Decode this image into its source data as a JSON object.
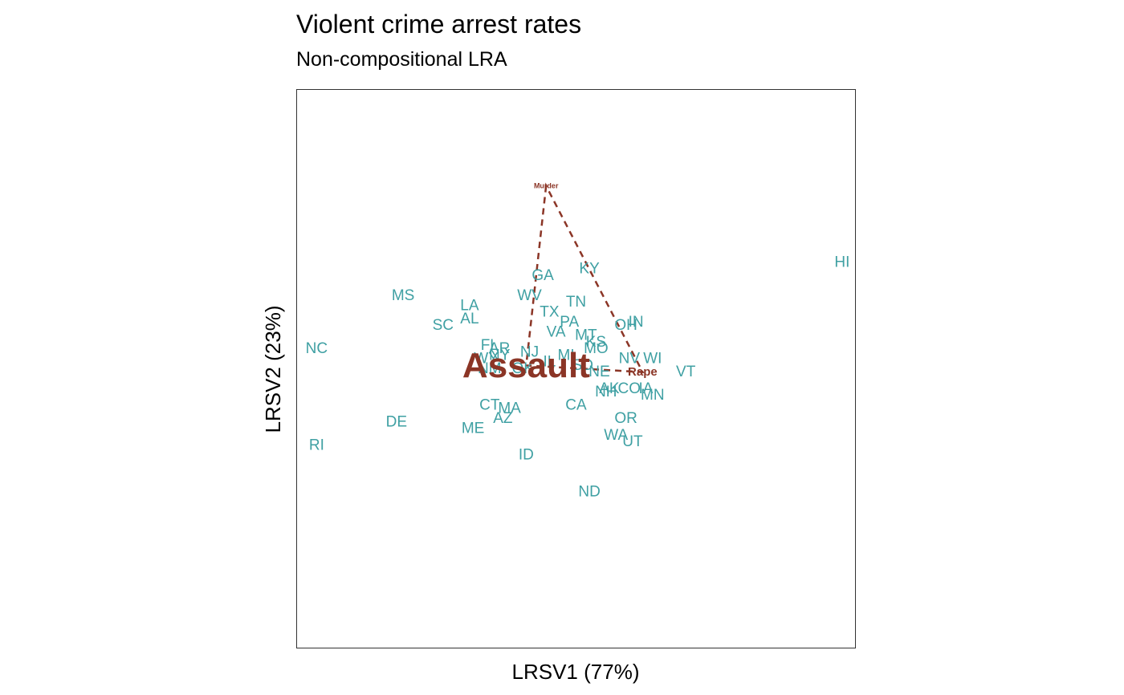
{
  "chart_data": {
    "type": "scatter",
    "title": "Violent crime arrest rates",
    "subtitle": "Non-compositional LRA",
    "xlabel": "LRSV1 (77%)",
    "ylabel": "LRSV2 (23%)",
    "xlim": [
      -4.2,
      4.2
    ],
    "ylim": [
      -4.2,
      4.2
    ],
    "grid": false,
    "legend": "none",
    "colors": {
      "points": "#3FA0A3",
      "variables": "#8B3526",
      "frame": "#333333"
    },
    "points": [
      {
        "label": "HI",
        "x": 4.0,
        "y": 1.6
      },
      {
        "label": "KY",
        "x": 0.2,
        "y": 1.5
      },
      {
        "label": "GA",
        "x": -0.5,
        "y": 1.4
      },
      {
        "label": "MS",
        "x": -2.6,
        "y": 1.1
      },
      {
        "label": "WV",
        "x": -0.7,
        "y": 1.1
      },
      {
        "label": "TN",
        "x": 0.0,
        "y": 1.0
      },
      {
        "label": "LA",
        "x": -1.6,
        "y": 0.95
      },
      {
        "label": "TX",
        "x": -0.4,
        "y": 0.85
      },
      {
        "label": "AL",
        "x": -1.6,
        "y": 0.75
      },
      {
        "label": "IN",
        "x": 0.9,
        "y": 0.7
      },
      {
        "label": "PA",
        "x": -0.1,
        "y": 0.7
      },
      {
        "label": "SC",
        "x": -2.0,
        "y": 0.65
      },
      {
        "label": "OH",
        "x": 0.75,
        "y": 0.65
      },
      {
        "label": "VA",
        "x": -0.3,
        "y": 0.55
      },
      {
        "label": "MT",
        "x": 0.15,
        "y": 0.5
      },
      {
        "label": "KS",
        "x": 0.3,
        "y": 0.4
      },
      {
        "label": "NC",
        "x": -3.9,
        "y": 0.3
      },
      {
        "label": "MO",
        "x": 0.3,
        "y": 0.3
      },
      {
        "label": "FL",
        "x": -1.3,
        "y": 0.35
      },
      {
        "label": "AR",
        "x": -1.15,
        "y": 0.3
      },
      {
        "label": "NJ",
        "x": -0.7,
        "y": 0.25
      },
      {
        "label": "MI",
        "x": -0.15,
        "y": 0.2
      },
      {
        "label": "NY",
        "x": -1.15,
        "y": 0.2
      },
      {
        "label": "WY",
        "x": -1.35,
        "y": 0.15
      },
      {
        "label": "NV",
        "x": 0.8,
        "y": 0.15
      },
      {
        "label": "WI",
        "x": 1.15,
        "y": 0.15
      },
      {
        "label": "IL",
        "x": -0.4,
        "y": 0.1
      },
      {
        "label": "SD",
        "x": 0.1,
        "y": 0.05
      },
      {
        "label": "NM",
        "x": -1.3,
        "y": 0.0
      },
      {
        "label": "OK",
        "x": -0.8,
        "y": 0.0
      },
      {
        "label": "VT",
        "x": 1.65,
        "y": -0.05
      },
      {
        "label": "NE",
        "x": 0.35,
        "y": -0.05
      },
      {
        "label": "AK",
        "x": 0.5,
        "y": -0.3
      },
      {
        "label": "CO",
        "x": 0.8,
        "y": -0.3
      },
      {
        "label": "IA",
        "x": 1.05,
        "y": -0.3
      },
      {
        "label": "NH",
        "x": 0.45,
        "y": -0.35
      },
      {
        "label": "MN",
        "x": 1.15,
        "y": -0.4
      },
      {
        "label": "CT",
        "x": -1.3,
        "y": -0.55
      },
      {
        "label": "CA",
        "x": 0.0,
        "y": -0.55
      },
      {
        "label": "MA",
        "x": -1.0,
        "y": -0.6
      },
      {
        "label": "AZ",
        "x": -1.1,
        "y": -0.75
      },
      {
        "label": "DE",
        "x": -2.7,
        "y": -0.8
      },
      {
        "label": "OR",
        "x": 0.75,
        "y": -0.75
      },
      {
        "label": "ME",
        "x": -1.55,
        "y": -0.9
      },
      {
        "label": "WA",
        "x": 0.6,
        "y": -1.0
      },
      {
        "label": "UT",
        "x": 0.85,
        "y": -1.1
      },
      {
        "label": "RI",
        "x": -3.9,
        "y": -1.15
      },
      {
        "label": "ID",
        "x": -0.75,
        "y": -1.3
      },
      {
        "label": "ND",
        "x": 0.2,
        "y": -1.85
      }
    ],
    "variables": [
      {
        "label": "Murder",
        "x": -0.45,
        "y": 2.75,
        "weight": "small"
      },
      {
        "label": "Assault",
        "x": -0.75,
        "y": 0.05,
        "weight": "large"
      },
      {
        "label": "Rape",
        "x": 1.0,
        "y": -0.05,
        "weight": "medium"
      }
    ]
  }
}
